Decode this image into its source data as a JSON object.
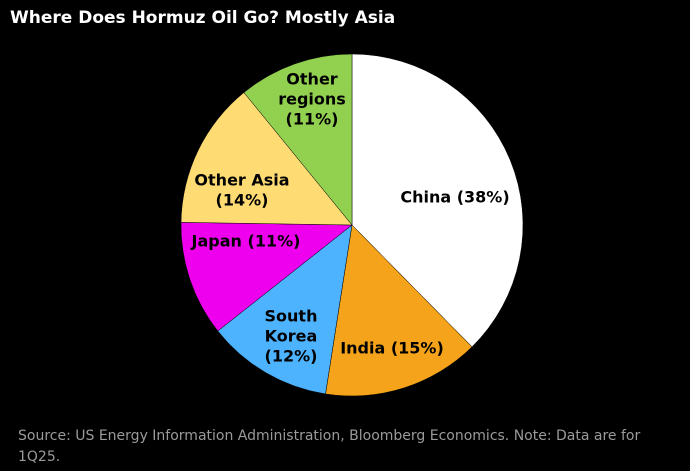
{
  "title": "Where Does Hormuz Oil Go? Mostly Asia",
  "source_note": "Source: US Energy Information Administration, Bloomberg Economics. Note: Data are for 1Q25.",
  "chart_data": {
    "type": "pie",
    "title": "Where Does Hormuz Oil Go? Mostly Asia",
    "start": "12 o'clock",
    "direction": "clockwise",
    "slices": [
      {
        "name": "China",
        "value": 38,
        "label_lines": [
          "China (38%)"
        ],
        "color": "#ffffff"
      },
      {
        "name": "India",
        "value": 15,
        "label_lines": [
          "India (15%)"
        ],
        "color": "#f5a31a"
      },
      {
        "name": "South Korea",
        "value": 12,
        "label_lines": [
          "South",
          "Korea",
          "(12%)"
        ],
        "color": "#4db3ff"
      },
      {
        "name": "Japan",
        "value": 11,
        "label_lines": [
          "Japan (11%)"
        ],
        "color": "#ee00ee"
      },
      {
        "name": "Other Asia",
        "value": 14,
        "label_lines": [
          "Other Asia",
          "(14%)"
        ],
        "color": "#ffdc73"
      },
      {
        "name": "Other regions",
        "value": 11,
        "label_lines": [
          "Other",
          "regions",
          "(11%)"
        ],
        "color": "#92d050"
      }
    ]
  }
}
